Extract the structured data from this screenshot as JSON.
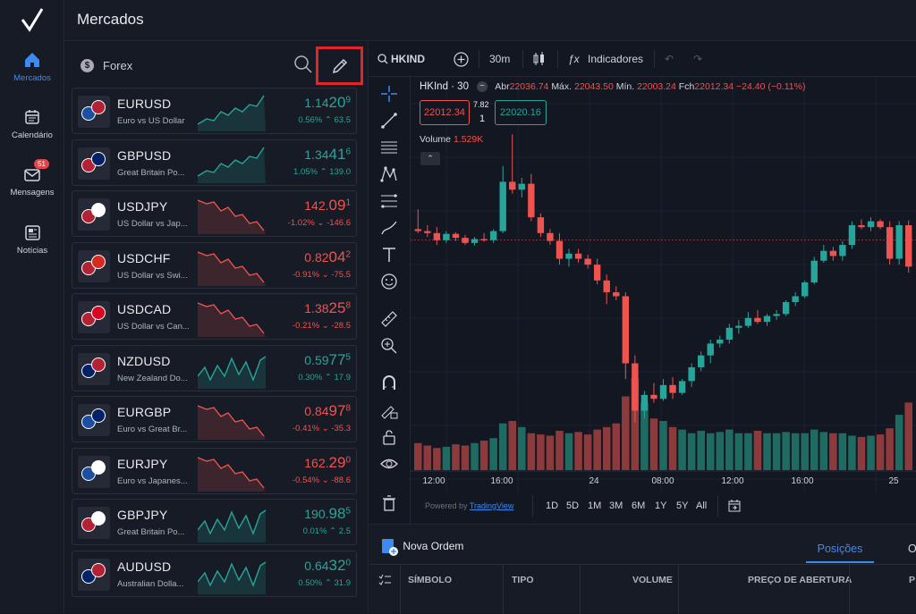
{
  "app": {
    "title": "Mercados"
  },
  "sidebar": {
    "items": [
      {
        "label": "Mercados",
        "icon": "home-icon",
        "active": true
      },
      {
        "label": "Calendário",
        "icon": "calendar-icon"
      },
      {
        "label": "Mensagens",
        "icon": "mail-icon",
        "badge": "51"
      },
      {
        "label": "Notícias",
        "icon": "news-icon"
      }
    ]
  },
  "markets": {
    "category": "Forex",
    "category_icon": "$",
    "pairs": [
      {
        "symbol": "EURUSD",
        "desc": "Euro vs US Dollar",
        "price_main": "1.14",
        "price_big": "20",
        "price_tail": "9",
        "change": "0.56%",
        "points": "63.5",
        "dir": "up",
        "flag1": "#1b4fa0",
        "flag2": "#b22234"
      },
      {
        "symbol": "GBPUSD",
        "desc": "Great Britain Po...",
        "price_main": "1.34",
        "price_big": "41",
        "price_tail": "6",
        "change": "1.05%",
        "points": "139.0",
        "dir": "up",
        "flag1": "#b22234",
        "flag2": "#012169"
      },
      {
        "symbol": "USDJPY",
        "desc": "US Dollar vs Jap...",
        "price_main": "142.",
        "price_big": "09",
        "price_tail": "1",
        "change": "-1.02%",
        "points": "-146.6",
        "dir": "down",
        "flag1": "#b22234",
        "flag2": "#ffffff"
      },
      {
        "symbol": "USDCHF",
        "desc": "US Dollar vs Swi...",
        "price_main": "0.82",
        "price_big": "04",
        "price_tail": "2",
        "change": "-0.91%",
        "points": "-75.5",
        "dir": "down",
        "flag1": "#b22234",
        "flag2": "#d52b1e"
      },
      {
        "symbol": "USDCAD",
        "desc": "US Dollar vs Can...",
        "price_main": "1.38",
        "price_big": "25",
        "price_tail": "8",
        "change": "-0.21%",
        "points": "-28.5",
        "dir": "down",
        "flag1": "#b22234",
        "flag2": "#d80621"
      },
      {
        "symbol": "NZDUSD",
        "desc": "New Zealand Do...",
        "price_main": "0.59",
        "price_big": "77",
        "price_tail": "5",
        "change": "0.30%",
        "points": "17.9",
        "dir": "up",
        "flag1": "#012169",
        "flag2": "#b22234"
      },
      {
        "symbol": "EURGBP",
        "desc": "Euro vs Great Br...",
        "price_main": "0.84",
        "price_big": "97",
        "price_tail": "8",
        "change": "-0.41%",
        "points": "-35.3",
        "dir": "down",
        "flag1": "#1b4fa0",
        "flag2": "#012169"
      },
      {
        "symbol": "EURJPY",
        "desc": "Euro vs Japanes...",
        "price_main": "162.",
        "price_big": "29",
        "price_tail": "0",
        "change": "-0.54%",
        "points": "-88.6",
        "dir": "down",
        "flag1": "#1b4fa0",
        "flag2": "#ffffff"
      },
      {
        "symbol": "GBPJPY",
        "desc": "Great Britain Po...",
        "price_main": "190.",
        "price_big": "98",
        "price_tail": "5",
        "change": "0.01%",
        "points": "2.5",
        "dir": "up",
        "flag1": "#b22234",
        "flag2": "#ffffff"
      },
      {
        "symbol": "AUDUSD",
        "desc": "Australian Dolla...",
        "price_main": "0.64",
        "price_big": "32",
        "price_tail": "0",
        "change": "0.50%",
        "points": "31.9",
        "dir": "up",
        "flag1": "#012169",
        "flag2": "#b22234"
      }
    ]
  },
  "chart_toolbar": {
    "symbol": "HKIND",
    "interval": "30m",
    "indicators_label": "Indicadores"
  },
  "chart_legend": {
    "title": "HKInd · 30",
    "abr_label": "Abr",
    "abr": "22036.74",
    "max_label": "Máx.",
    "max": "22043.50",
    "min_label": "Mín.",
    "min": "22003.24",
    "fch_label": "Fch",
    "fch": "22012.34",
    "change": "−24.40 (−0.11%)",
    "bid": "22012.34",
    "spread_top": "7.82",
    "spread_bottom": "1",
    "ask": "22020.16",
    "volume_label": "Volume",
    "volume": "1.529K"
  },
  "chart_data": {
    "type": "candlestick",
    "x_tick_labels": [
      "12:00",
      "16:00",
      "24",
      "08:00",
      "12:00",
      "16:00",
      "25"
    ],
    "candles": [
      {
        "o": 22040,
        "h": 22090,
        "l": 22030,
        "c": 22035
      },
      {
        "o": 22035,
        "h": 22050,
        "l": 22020,
        "c": 22030
      },
      {
        "o": 22030,
        "h": 22045,
        "l": 22000,
        "c": 22012
      },
      {
        "o": 22012,
        "h": 22035,
        "l": 22005,
        "c": 22028
      },
      {
        "o": 22028,
        "h": 22032,
        "l": 22010,
        "c": 22018
      },
      {
        "o": 22018,
        "h": 22025,
        "l": 22000,
        "c": 22005
      },
      {
        "o": 22005,
        "h": 22020,
        "l": 21998,
        "c": 22015
      },
      {
        "o": 22015,
        "h": 22030,
        "l": 22008,
        "c": 22012
      },
      {
        "o": 22012,
        "h": 22040,
        "l": 22005,
        "c": 22035
      },
      {
        "o": 22035,
        "h": 22200,
        "l": 22030,
        "c": 22160
      },
      {
        "o": 22160,
        "h": 22280,
        "l": 22130,
        "c": 22140
      },
      {
        "o": 22140,
        "h": 22170,
        "l": 22120,
        "c": 22155
      },
      {
        "o": 22155,
        "h": 22180,
        "l": 22060,
        "c": 22070
      },
      {
        "o": 22070,
        "h": 22080,
        "l": 22020,
        "c": 22030
      },
      {
        "o": 22030,
        "h": 22040,
        "l": 22000,
        "c": 22010
      },
      {
        "o": 22010,
        "h": 22030,
        "l": 21950,
        "c": 21965
      },
      {
        "o": 21965,
        "h": 21990,
        "l": 21945,
        "c": 21978
      },
      {
        "o": 21978,
        "h": 21990,
        "l": 21955,
        "c": 21965
      },
      {
        "o": 21965,
        "h": 21975,
        "l": 21940,
        "c": 21950
      },
      {
        "o": 21950,
        "h": 21965,
        "l": 21900,
        "c": 21910
      },
      {
        "o": 21910,
        "h": 21925,
        "l": 21850,
        "c": 21880
      },
      {
        "o": 21880,
        "h": 21895,
        "l": 21860,
        "c": 21870
      },
      {
        "o": 21870,
        "h": 21880,
        "l": 21660,
        "c": 21700
      },
      {
        "o": 21700,
        "h": 21720,
        "l": 21550,
        "c": 21580
      },
      {
        "o": 21580,
        "h": 21630,
        "l": 21560,
        "c": 21620
      },
      {
        "o": 21620,
        "h": 21650,
        "l": 21600,
        "c": 21610
      },
      {
        "o": 21610,
        "h": 21660,
        "l": 21605,
        "c": 21645
      },
      {
        "o": 21645,
        "h": 21665,
        "l": 21610,
        "c": 21625
      },
      {
        "o": 21625,
        "h": 21660,
        "l": 21620,
        "c": 21655
      },
      {
        "o": 21655,
        "h": 21700,
        "l": 21640,
        "c": 21690
      },
      {
        "o": 21690,
        "h": 21730,
        "l": 21680,
        "c": 21720
      },
      {
        "o": 21720,
        "h": 21760,
        "l": 21700,
        "c": 21750
      },
      {
        "o": 21750,
        "h": 21770,
        "l": 21740,
        "c": 21760
      },
      {
        "o": 21760,
        "h": 21800,
        "l": 21750,
        "c": 21790
      },
      {
        "o": 21790,
        "h": 21810,
        "l": 21775,
        "c": 21795
      },
      {
        "o": 21795,
        "h": 21830,
        "l": 21790,
        "c": 21815
      },
      {
        "o": 21815,
        "h": 21835,
        "l": 21800,
        "c": 21805
      },
      {
        "o": 21805,
        "h": 21825,
        "l": 21795,
        "c": 21820
      },
      {
        "o": 21820,
        "h": 21835,
        "l": 21810,
        "c": 21825
      },
      {
        "o": 21825,
        "h": 21860,
        "l": 21820,
        "c": 21855
      },
      {
        "o": 21855,
        "h": 21880,
        "l": 21845,
        "c": 21870
      },
      {
        "o": 21870,
        "h": 21910,
        "l": 21865,
        "c": 21905
      },
      {
        "o": 21905,
        "h": 21970,
        "l": 21900,
        "c": 21960
      },
      {
        "o": 21960,
        "h": 22000,
        "l": 21955,
        "c": 21985
      },
      {
        "o": 21985,
        "h": 21995,
        "l": 21960,
        "c": 21972
      },
      {
        "o": 21972,
        "h": 22010,
        "l": 21960,
        "c": 22000
      },
      {
        "o": 22000,
        "h": 22060,
        "l": 21990,
        "c": 22050
      },
      {
        "o": 22050,
        "h": 22065,
        "l": 22040,
        "c": 22045
      },
      {
        "o": 22045,
        "h": 22070,
        "l": 22035,
        "c": 22060
      },
      {
        "o": 22060,
        "h": 22065,
        "l": 22040,
        "c": 22045
      },
      {
        "o": 22045,
        "h": 22060,
        "l": 21950,
        "c": 21965
      },
      {
        "o": 21965,
        "h": 22060,
        "l": 21950,
        "c": 22050
      },
      {
        "o": 22050,
        "h": 22062,
        "l": 21930,
        "c": 21945
      }
    ],
    "volumes": [
      22,
      20,
      18,
      19,
      21,
      20,
      22,
      24,
      26,
      38,
      40,
      35,
      30,
      29,
      28,
      32,
      30,
      31,
      29,
      33,
      35,
      38,
      60,
      75,
      55,
      42,
      40,
      35,
      33,
      30,
      32,
      30,
      31,
      33,
      30,
      30,
      32,
      30,
      30,
      31,
      30,
      30,
      33,
      31,
      30,
      30,
      28,
      27,
      28,
      29,
      34,
      45,
      55
    ],
    "bid_line": 22012.34
  },
  "chart_bottom": {
    "powered_by": "Powered by",
    "powered_link": "TradingView",
    "ranges": [
      "1D",
      "5D",
      "1M",
      "3M",
      "6M",
      "1Y",
      "5Y",
      "All"
    ]
  },
  "orders": {
    "new_order": "Nova Ordem",
    "tab_positions": "Posições",
    "tab_next": "O",
    "columns": [
      "SÍMBOLO",
      "TIPO",
      "VOLUME",
      "PREÇO DE ABERTURA",
      "P"
    ]
  },
  "colors": {
    "up": "#26a69a",
    "down": "#ef5350",
    "accent": "#3d8bf2",
    "highlight": "#e3252b"
  }
}
